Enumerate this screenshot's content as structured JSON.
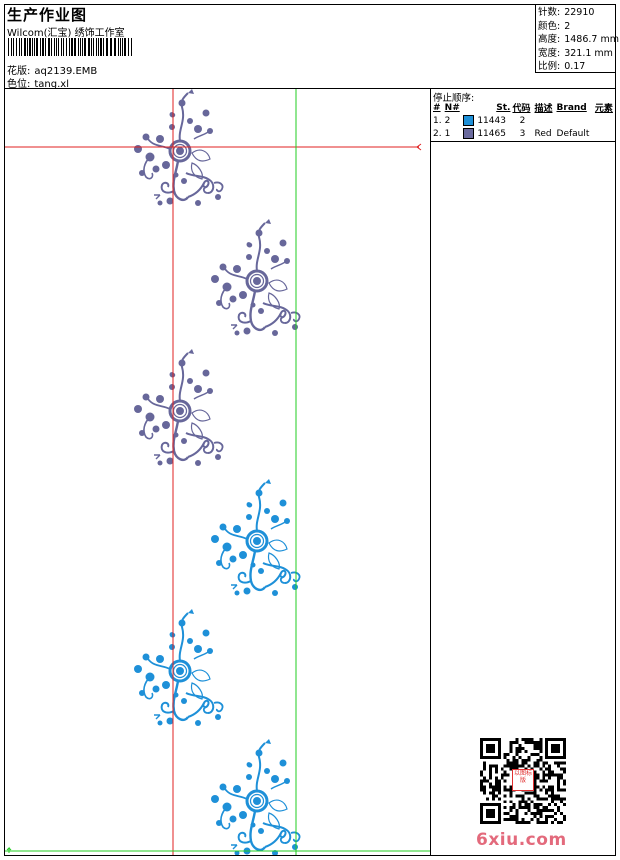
{
  "header": {
    "title": "生产作业图",
    "company": "Wilcom(汇宝) 绣饰工作室",
    "design_label": "花版:",
    "design_value": "aq2139.EMB",
    "colorway_label": "色位:",
    "colorway_value": "tang.xl"
  },
  "stats": {
    "stitches_label": "针数:",
    "stitches_value": "22910",
    "colors_label": "颜色:",
    "colors_value": "2",
    "height_label": "高度:",
    "height_value": "1486.7 mm",
    "width_label": "宽度:",
    "width_value": "321.1 mm",
    "scale_label": "比例:",
    "scale_value": "0.17"
  },
  "stop_sequence": {
    "title": "停止顺序:",
    "columns": [
      "#",
      "N#",
      "St.",
      "代码",
      "描述",
      "Brand",
      "元素"
    ],
    "rows": [
      {
        "idx": "1.",
        "needle": "2",
        "color": "#1e90d8",
        "code": "11443",
        "stitches": "2",
        "desc": "",
        "brand": ""
      },
      {
        "idx": "2.",
        "needle": "1",
        "color": "#6a6a9e",
        "code": "11465",
        "stitches": "3",
        "desc": "Red",
        "brand": "Default"
      }
    ]
  },
  "design_colors": {
    "purple": "#67679a",
    "blue": "#1e90d8",
    "red_guide": "#e02020",
    "green_guide": "#22cc22"
  },
  "watermark": {
    "stamp_text": "以图标版",
    "site": "6xiu.com"
  }
}
